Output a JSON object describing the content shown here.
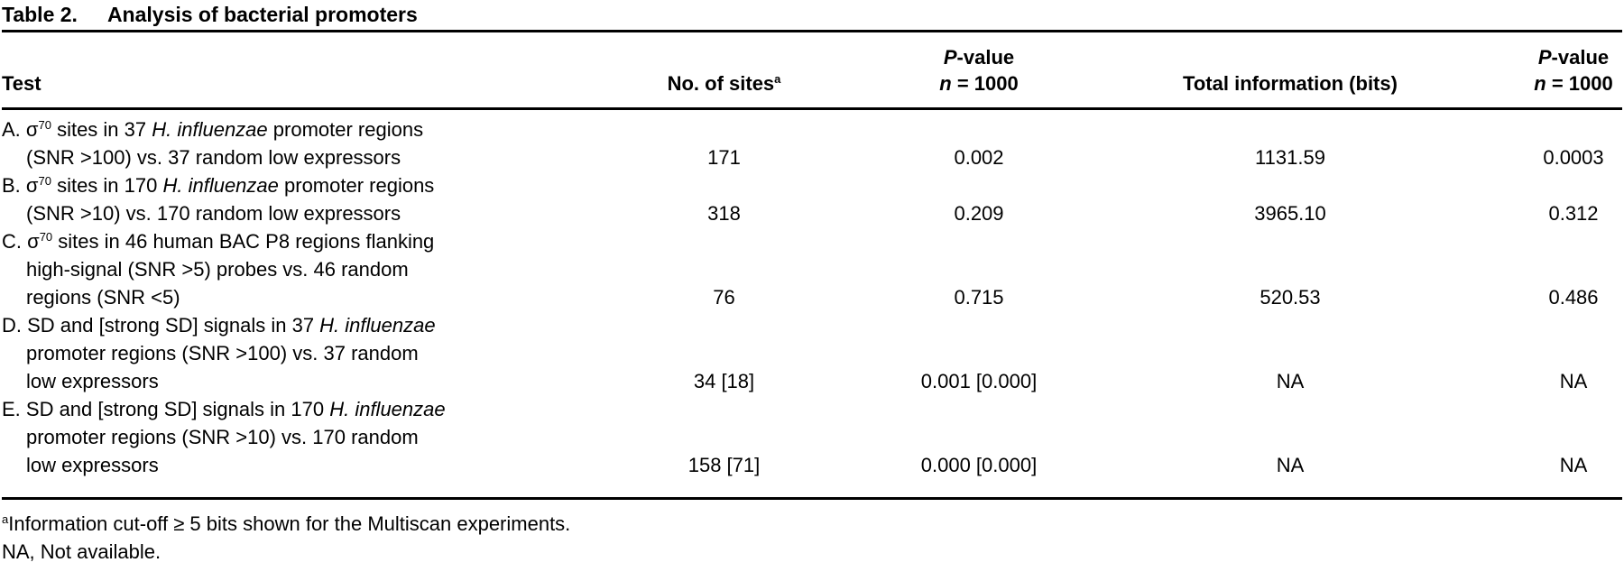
{
  "title": {
    "label": "Table 2.",
    "caption": "Analysis of bacterial promoters"
  },
  "header": {
    "test": "Test",
    "sites_segs": [
      [
        "No. of sites",
        ""
      ],
      [
        "a",
        "sup"
      ]
    ],
    "pvalue_line1_segs": [
      [
        "P",
        "i"
      ],
      [
        "-value",
        ""
      ]
    ],
    "pvalue_line2_segs": [
      [
        "n",
        "i"
      ],
      [
        " = 1000",
        ""
      ]
    ],
    "total_info": "Total information (bits)",
    "pvalue2_line1_segs": [
      [
        "P",
        "i"
      ],
      [
        "-value",
        ""
      ]
    ],
    "pvalue2_line2_segs": [
      [
        "n",
        "i"
      ],
      [
        " = 1000",
        ""
      ]
    ]
  },
  "rows": [
    {
      "id": "A",
      "test_lines": [
        {
          "indent": false,
          "segs": [
            [
              "A. ",
              ""
            ],
            [
              "σ",
              ""
            ],
            [
              "70",
              "sup"
            ],
            [
              " sites in 37 ",
              ""
            ],
            [
              "H. influenzae",
              "i"
            ],
            [
              " promoter regions",
              ""
            ]
          ]
        },
        {
          "indent": true,
          "segs": [
            [
              "(SNR >100) vs. 37 random low expressors",
              ""
            ]
          ]
        }
      ],
      "sites": "171",
      "pvalue": "0.002",
      "total_info": "1131.59",
      "pvalue2": "0.0003"
    },
    {
      "id": "B",
      "test_lines": [
        {
          "indent": false,
          "segs": [
            [
              "B. ",
              ""
            ],
            [
              "σ",
              ""
            ],
            [
              "70",
              "sup"
            ],
            [
              " sites in 170 ",
              ""
            ],
            [
              "H. influenzae",
              "i"
            ],
            [
              " promoter regions",
              ""
            ]
          ]
        },
        {
          "indent": true,
          "segs": [
            [
              "(SNR >10) vs. 170 random low expressors",
              ""
            ]
          ]
        }
      ],
      "sites": "318",
      "pvalue": "0.209",
      "total_info": "3965.10",
      "pvalue2": "0.312"
    },
    {
      "id": "C",
      "test_lines": [
        {
          "indent": false,
          "segs": [
            [
              "C. ",
              ""
            ],
            [
              "σ",
              ""
            ],
            [
              "70",
              "sup"
            ],
            [
              " sites in 46 human BAC P8 regions flanking",
              ""
            ]
          ]
        },
        {
          "indent": true,
          "segs": [
            [
              "high-signal (SNR >5) probes vs. 46 random",
              ""
            ]
          ]
        },
        {
          "indent": true,
          "segs": [
            [
              "regions (SNR <5)",
              ""
            ]
          ]
        }
      ],
      "sites": "76",
      "pvalue": "0.715",
      "total_info": "520.53",
      "pvalue2": "0.486"
    },
    {
      "id": "D",
      "test_lines": [
        {
          "indent": false,
          "segs": [
            [
              "D. SD and [strong SD] signals in 37 ",
              ""
            ],
            [
              "H. influenzae",
              "i"
            ]
          ]
        },
        {
          "indent": true,
          "segs": [
            [
              "promoter regions (SNR >100) vs. 37 random",
              ""
            ]
          ]
        },
        {
          "indent": true,
          "segs": [
            [
              "low expressors",
              ""
            ]
          ]
        }
      ],
      "sites": "34 [18]",
      "pvalue": "0.001 [0.000]",
      "total_info": "NA",
      "pvalue2": "NA"
    },
    {
      "id": "E",
      "test_lines": [
        {
          "indent": false,
          "segs": [
            [
              "E. SD and [strong SD] signals in 170 ",
              ""
            ],
            [
              "H. influenzae",
              "i"
            ]
          ]
        },
        {
          "indent": true,
          "segs": [
            [
              "promoter regions (SNR >10) vs. 170 random",
              ""
            ]
          ]
        },
        {
          "indent": true,
          "segs": [
            [
              "low expressors",
              ""
            ]
          ]
        }
      ],
      "sites": "158 [71]",
      "pvalue": "0.000 [0.000]",
      "total_info": "NA",
      "pvalue2": "NA"
    }
  ],
  "footnotes": [
    {
      "segs": [
        [
          "a",
          "sup"
        ],
        [
          "Information cut-off ≥ 5 bits shown for the Multiscan experiments.",
          ""
        ]
      ]
    },
    {
      "segs": [
        [
          "NA, Not available.",
          ""
        ]
      ]
    }
  ]
}
